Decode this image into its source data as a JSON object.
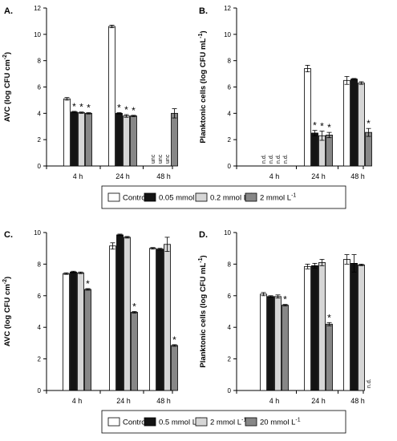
{
  "colors": {
    "control": "#ffffff",
    "s1": "#141414",
    "s2": "#d6d6d6",
    "s3": "#878787"
  },
  "chart_data": [
    {
      "type": "bar",
      "panel_label": "A.",
      "ylabel": "AVC (log CFU cm",
      "ylabel_sup": "-2",
      "ylabel_end": ")",
      "ylim": [
        0,
        12
      ],
      "yticks": [
        "0",
        "2",
        "4",
        "6",
        "8",
        "10",
        "12"
      ],
      "categories": [
        "4 h",
        "24 h",
        "48 h"
      ],
      "series": [
        {
          "name": "Control",
          "values": [
            5.1,
            10.6,
            null
          ],
          "errors": [
            0.1,
            0.1,
            null
          ]
        },
        {
          "name": "0.05 mmol L-1",
          "values": [
            4.1,
            4.0,
            null
          ],
          "errors": [
            0.05,
            0.05,
            null
          ]
        },
        {
          "name": "0.2 mmol L-1",
          "values": [
            4.05,
            3.8,
            null
          ],
          "errors": [
            0.05,
            0.1,
            null
          ]
        },
        {
          "name": "2 mmol L-1",
          "values": [
            4.0,
            3.8,
            4.0
          ],
          "errors": [
            0.05,
            0.05,
            0.35
          ]
        }
      ],
      "annotations": [
        {
          "category": 0,
          "series": 1,
          "text": "*",
          "kind": "star"
        },
        {
          "category": 0,
          "series": 2,
          "text": "*",
          "kind": "star"
        },
        {
          "category": 0,
          "series": 3,
          "text": "*",
          "kind": "star"
        },
        {
          "category": 1,
          "series": 1,
          "text": "*",
          "kind": "star"
        },
        {
          "category": 1,
          "series": 2,
          "text": "*",
          "kind": "star"
        },
        {
          "category": 1,
          "series": 3,
          "text": "*",
          "kind": "star"
        },
        {
          "category": 2,
          "series": 0,
          "text": "unc",
          "kind": "rot"
        },
        {
          "category": 2,
          "series": 1,
          "text": "unc",
          "kind": "rot"
        },
        {
          "category": 2,
          "series": 2,
          "text": "unc",
          "kind": "rot"
        }
      ]
    },
    {
      "type": "bar",
      "panel_label": "B.",
      "ylabel": "Planktonic cells (log CFU mL",
      "ylabel_sup": "-1",
      "ylabel_end": ")",
      "ylim": [
        0,
        12
      ],
      "yticks": [
        "0",
        "2",
        "4",
        "6",
        "8",
        "10",
        "12"
      ],
      "categories": [
        "4 h",
        "24 h",
        "48 h"
      ],
      "series": [
        {
          "name": "Control",
          "values": [
            null,
            7.4,
            6.5
          ],
          "errors": [
            null,
            0.25,
            0.3
          ]
        },
        {
          "name": "0.05 mmol L-1",
          "values": [
            null,
            2.5,
            6.6
          ],
          "errors": [
            null,
            0.2,
            0.05
          ]
        },
        {
          "name": "0.2 mmol L-1",
          "values": [
            null,
            2.3,
            6.3
          ],
          "errors": [
            null,
            0.35,
            0.1
          ]
        },
        {
          "name": "2 mmol L-1",
          "values": [
            null,
            2.35,
            2.55
          ],
          "errors": [
            null,
            0.2,
            0.3
          ]
        }
      ],
      "annotations": [
        {
          "category": 0,
          "series": 0,
          "text": "n.d.",
          "kind": "rot"
        },
        {
          "category": 0,
          "series": 1,
          "text": "n.d.",
          "kind": "rot"
        },
        {
          "category": 0,
          "series": 2,
          "text": "n.d.",
          "kind": "rot"
        },
        {
          "category": 0,
          "series": 3,
          "text": "n.d.",
          "kind": "rot"
        },
        {
          "category": 1,
          "series": 1,
          "text": "*",
          "kind": "star"
        },
        {
          "category": 1,
          "series": 2,
          "text": "*",
          "kind": "star"
        },
        {
          "category": 1,
          "series": 3,
          "text": "*",
          "kind": "star"
        },
        {
          "category": 2,
          "series": 3,
          "text": "*",
          "kind": "star"
        }
      ]
    },
    {
      "type": "bar",
      "panel_label": "C.",
      "ylabel": "AVC (log CFU cm",
      "ylabel_sup": "-2",
      "ylabel_end": ")",
      "ylim": [
        0,
        10
      ],
      "yticks": [
        "0",
        "2",
        "4",
        "6",
        "8",
        "10"
      ],
      "categories": [
        "4 h",
        "24 h",
        "48 h"
      ],
      "series": [
        {
          "name": "Control",
          "values": [
            7.4,
            9.15,
            9.0
          ],
          "errors": [
            0.05,
            0.2,
            0.05
          ]
        },
        {
          "name": "0.5 mmol L-1",
          "values": [
            7.5,
            9.85,
            8.95
          ],
          "errors": [
            0.05,
            0.05,
            0.05
          ]
        },
        {
          "name": "2 mmol L-1",
          "values": [
            7.45,
            9.7,
            9.25
          ],
          "errors": [
            0.05,
            0.05,
            0.45
          ]
        },
        {
          "name": "20 mmol L-1",
          "values": [
            6.4,
            4.95,
            2.85
          ],
          "errors": [
            0.05,
            0.05,
            0.05
          ]
        }
      ],
      "annotations": [
        {
          "category": 0,
          "series": 3,
          "text": "*",
          "kind": "star"
        },
        {
          "category": 1,
          "series": 3,
          "text": "*",
          "kind": "star"
        },
        {
          "category": 2,
          "series": 3,
          "text": "*",
          "kind": "star"
        }
      ]
    },
    {
      "type": "bar",
      "panel_label": "D.",
      "ylabel": "Planktonic cells (log CFU mL",
      "ylabel_sup": "-1",
      "ylabel_end": ")",
      "ylim": [
        0,
        10
      ],
      "yticks": [
        "0",
        "2",
        "4",
        "6",
        "8",
        "10"
      ],
      "categories": [
        "4 h",
        "24 h",
        "48 h"
      ],
      "series": [
        {
          "name": "Control",
          "values": [
            6.1,
            7.85,
            8.3
          ],
          "errors": [
            0.1,
            0.15,
            0.3
          ]
        },
        {
          "name": "0.5 mmol L-1",
          "values": [
            5.95,
            7.9,
            8.05
          ],
          "errors": [
            0.05,
            0.15,
            0.55
          ]
        },
        {
          "name": "2 mmol L-1",
          "values": [
            5.95,
            8.1,
            7.95
          ],
          "errors": [
            0.1,
            0.2,
            0.05
          ]
        },
        {
          "name": "20 mmol L-1",
          "values": [
            5.4,
            4.2,
            null
          ],
          "errors": [
            0.05,
            0.1,
            null
          ]
        }
      ],
      "annotations": [
        {
          "category": 0,
          "series": 3,
          "text": "*",
          "kind": "star"
        },
        {
          "category": 1,
          "series": 3,
          "text": "*",
          "kind": "star"
        },
        {
          "category": 2,
          "series": 3,
          "text": "n.d.",
          "kind": "rot"
        }
      ]
    }
  ],
  "legends": [
    {
      "entries": [
        {
          "label": "Control",
          "sup": ""
        },
        {
          "label": "0.05 mmol L",
          "sup": "-1"
        },
        {
          "label": "0.2 mmol L",
          "sup": "-1"
        },
        {
          "label": "2 mmol L",
          "sup": "-1"
        }
      ]
    },
    {
      "entries": [
        {
          "label": "Control",
          "sup": ""
        },
        {
          "label": "0.5 mmol L",
          "sup": "-1"
        },
        {
          "label": "2 mmol L",
          "sup": "-1"
        },
        {
          "label": "20 mmol L",
          "sup": "-1"
        }
      ]
    }
  ]
}
